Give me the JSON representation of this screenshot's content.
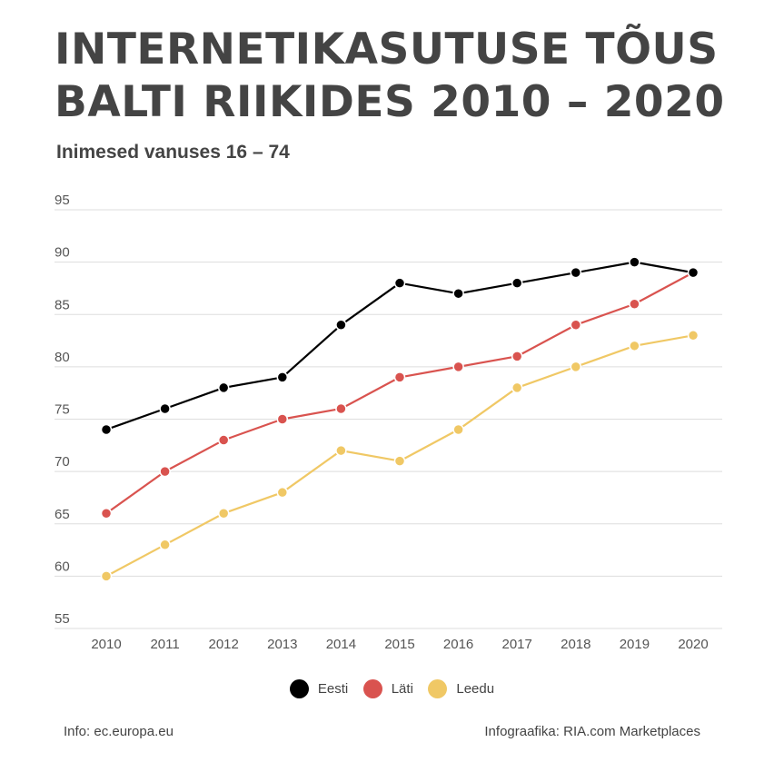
{
  "colors": {
    "Eesti": "#000000",
    "Läti": "#d9534f",
    "Leedu": "#f0c865",
    "grid": "#dddddd",
    "text": "#444444"
  },
  "footer": {
    "source": "Info: ec.europa.eu",
    "credit": "Infograafika: RIA.com Marketplaces"
  },
  "chart_data": {
    "type": "line",
    "title_lines": [
      "INTERNETIKASUTUSE TÕUS",
      "BALTI RIIKIDES 2010 – 2020"
    ],
    "subtitle": "Inimesed vanuses 16 – 74",
    "xlabel": "",
    "ylabel": "",
    "x": [
      "2010",
      "2011",
      "2012",
      "2013",
      "2014",
      "2015",
      "2016",
      "2017",
      "2018",
      "2019",
      "2020"
    ],
    "yticks": [
      95,
      90,
      85,
      80,
      75,
      70,
      65,
      60,
      55
    ],
    "ylim": [
      55,
      95
    ],
    "grid": true,
    "legend_position": "bottom",
    "series": [
      {
        "name": "Eesti",
        "values": [
          74,
          76,
          78,
          79,
          84,
          88,
          87,
          88,
          89,
          90,
          89
        ]
      },
      {
        "name": "Läti",
        "values": [
          66,
          70,
          73,
          75,
          76,
          79,
          80,
          81,
          84,
          86,
          89
        ]
      },
      {
        "name": "Leedu",
        "values": [
          60,
          63,
          66,
          68,
          72,
          71,
          74,
          78,
          80,
          82,
          83
        ]
      }
    ]
  }
}
